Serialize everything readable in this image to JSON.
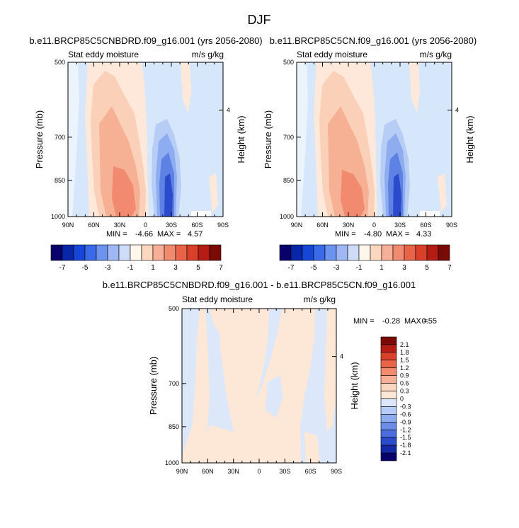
{
  "figure_title": "DJF",
  "chart_data": [
    {
      "type": "heatmap",
      "title": "b.e11.BRCP85C5CNBDRD.f09_g16.001 (yrs 2056-2080)",
      "left_label": "Stat eddy moisture",
      "right_label": "m/s g/kg",
      "ylabel": "Pressure (mb)",
      "y2label": "Height (km)",
      "xticks": [
        "90N",
        "60N",
        "30N",
        "0",
        "30S",
        "60S",
        "90S"
      ],
      "yticks": [
        "500",
        "700",
        "850",
        "1000"
      ],
      "y2ticks": [
        "4"
      ],
      "ylim": [
        1000,
        500
      ],
      "stats": {
        "min_label": "MIN =",
        "min": "-4.66",
        "max_label": "MAX =",
        "max": "4.57"
      }
    },
    {
      "type": "heatmap",
      "title": "b.e11.BRCP85C5CN.f09_g16.001 (yrs 2056-2080)",
      "left_label": "Stat eddy moisture",
      "right_label": "m/s g/kg",
      "ylabel": "Pressure (mb)",
      "y2label": "Height (km)",
      "xticks": [
        "90N",
        "60N",
        "30N",
        "0",
        "30S",
        "60S",
        "90S"
      ],
      "yticks": [
        "500",
        "700",
        "850",
        "1000"
      ],
      "y2ticks": [
        "4"
      ],
      "ylim": [
        1000,
        500
      ],
      "stats": {
        "min_label": "MIN =",
        "min": "-4.80",
        "max_label": "MAX =",
        "max": "4.33"
      }
    },
    {
      "type": "heatmap",
      "title": "b.e11.BRCP85C5CNBDRD.f09_g16.001 - b.e11.BRCP85C5CN.f09_g16.001",
      "left_label": "Stat eddy moisture",
      "right_label": "m/s g/kg",
      "ylabel": "Pressure (mb)",
      "y2label": "Height (km)",
      "xticks": [
        "90N",
        "60N",
        "30N",
        "0",
        "30S",
        "60S",
        "90S"
      ],
      "yticks": [
        "500",
        "700",
        "850",
        "1000"
      ],
      "y2ticks": [
        "4"
      ],
      "ylim": [
        1000,
        500
      ],
      "stats": {
        "min_label": "MIN =",
        "min": "-0.28",
        "max_label": "MAX =",
        "max": "0.55"
      }
    }
  ],
  "colorbar_top": {
    "colors": [
      "#08006b",
      "#0826a8",
      "#1646d8",
      "#3b6ae8",
      "#6d93f0",
      "#9fb8f5",
      "#cfdcf8",
      "#fff6ec",
      "#fcd7c0",
      "#f7b097",
      "#f18a6e",
      "#e86347",
      "#d9402a",
      "#b51d14",
      "#7a0a05"
    ],
    "labels": [
      "-7",
      "-5",
      "-3",
      "-1",
      "1",
      "3",
      "5",
      "7"
    ]
  },
  "colorbar_diff": {
    "colors": [
      "#7a0a05",
      "#b51d14",
      "#d9402a",
      "#e86347",
      "#f18a6e",
      "#f7b097",
      "#fcd7c0",
      "#fde7d6",
      "#dce8fa",
      "#b6cbf5",
      "#8eadf0",
      "#6a8de8",
      "#4a6cde",
      "#2c4bcc",
      "#1529a8",
      "#08006b"
    ],
    "labels": [
      "2.1",
      "1.8",
      "1.5",
      "1.2",
      "0.9",
      "0.6",
      "0.3",
      "0",
      "-0.3",
      "-0.6",
      "-0.9",
      "-1.2",
      "-1.5",
      "-1.8",
      "-2.1"
    ]
  }
}
